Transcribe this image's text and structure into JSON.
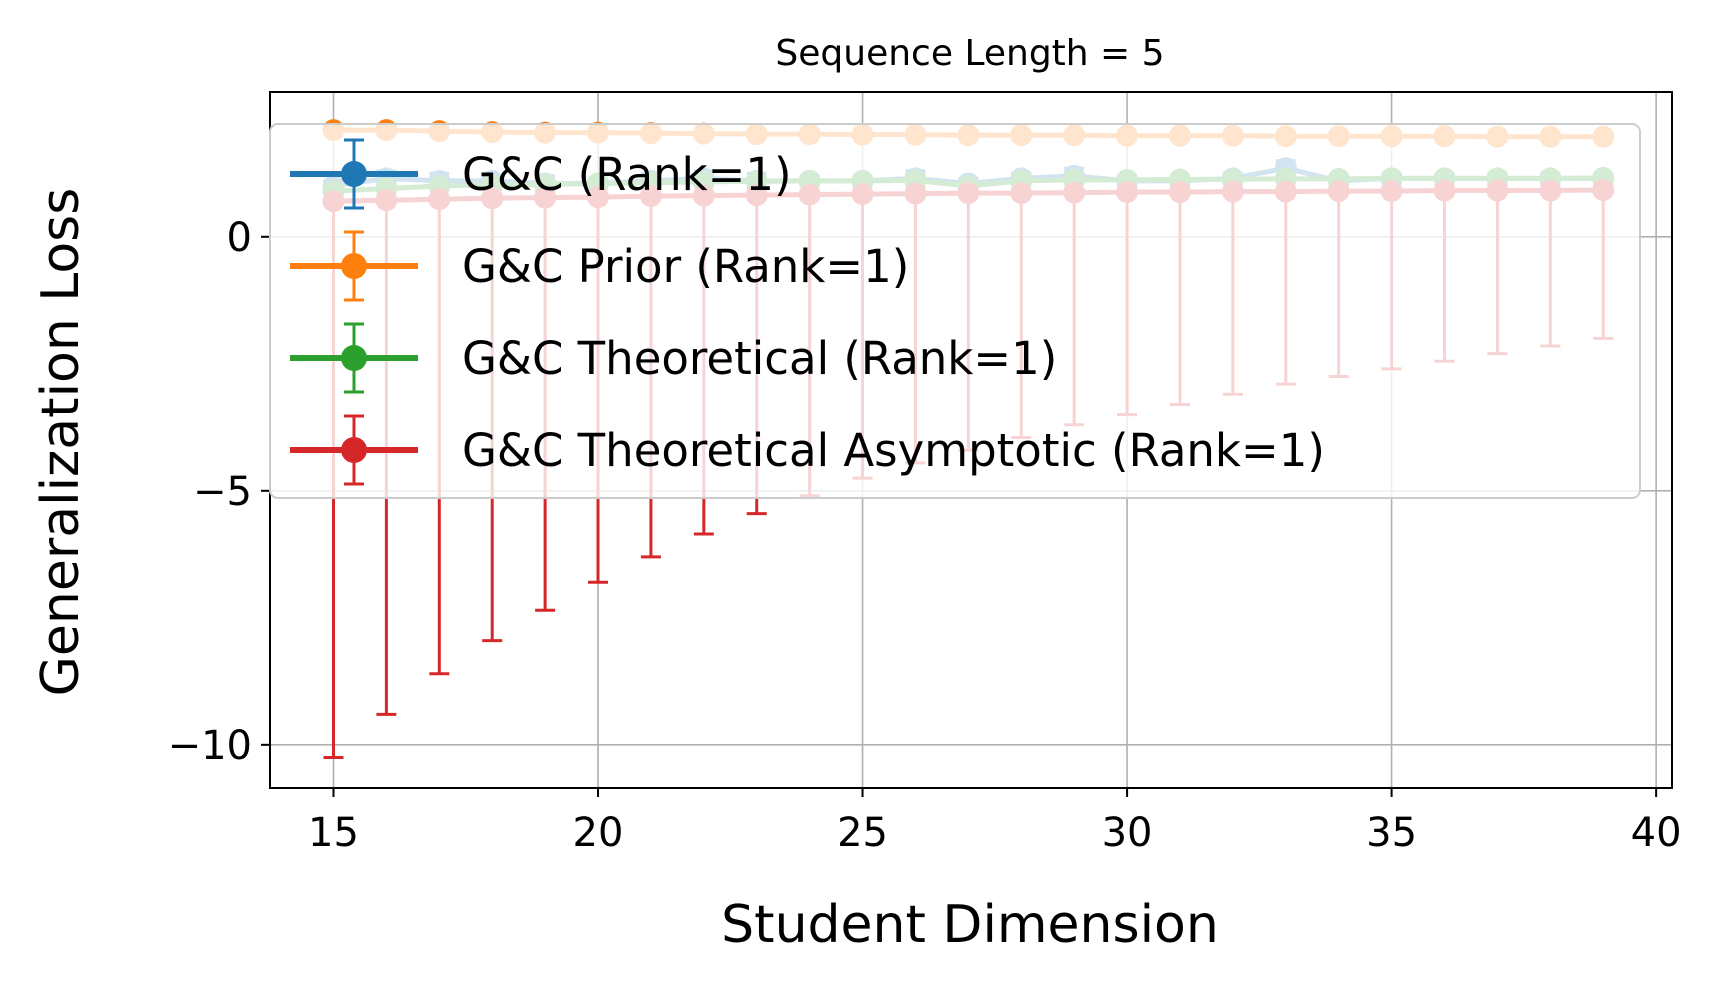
{
  "chart_data": {
    "type": "line",
    "title": "Sequence Length = 5",
    "xlabel": "Student Dimension",
    "ylabel": "Generalization Loss",
    "xlim": [
      13.8,
      40.3
    ],
    "ylim": [
      -10.85,
      2.85
    ],
    "xticks": [
      15,
      20,
      25,
      30,
      35,
      40
    ],
    "xtick_labels": [
      "15",
      "20",
      "25",
      "30",
      "35",
      "40"
    ],
    "yticks": [
      0,
      -5,
      -10
    ],
    "ytick_labels": [
      "0",
      "−5",
      "−10"
    ],
    "grid": true,
    "legend_position": "upper-left",
    "x": [
      15,
      16,
      17,
      18,
      19,
      20,
      21,
      22,
      23,
      24,
      25,
      26,
      27,
      28,
      29,
      30,
      31,
      32,
      33,
      34,
      35,
      36,
      37,
      38,
      39
    ],
    "series": [
      {
        "name": "G&C (Rank=1)",
        "color": "#1f77b4",
        "values": [
          1.0,
          1.15,
          1.1,
          1.1,
          1.05,
          1.05,
          1.1,
          1.15,
          1.1,
          1.1,
          1.1,
          1.15,
          1.05,
          1.15,
          1.2,
          1.1,
          1.1,
          1.15,
          1.35,
          1.1,
          1.15,
          1.15,
          1.15,
          1.15,
          1.15
        ],
        "err": [
          0.1,
          0.15,
          0.15,
          0.1,
          0.15,
          0.1,
          0.15,
          0.15,
          0.15,
          0.1,
          0.1,
          0.15,
          0.1,
          0.1,
          0.15,
          0.1,
          0.1,
          0.1,
          0.15,
          0.1,
          0.1,
          0.1,
          0.1,
          0.1,
          0.1
        ]
      },
      {
        "name": "G&C Prior (Rank=1)",
        "color": "#ff7f0e",
        "values": [
          2.1,
          2.1,
          2.08,
          2.06,
          2.05,
          2.05,
          2.04,
          2.03,
          2.02,
          2.02,
          2.01,
          2.01,
          2.0,
          2.0,
          2.0,
          1.99,
          1.99,
          1.99,
          1.98,
          1.98,
          1.98,
          1.98,
          1.97,
          1.97,
          1.97
        ],
        "err": [
          0.05,
          0.05,
          0.05,
          0.05,
          0.05,
          0.05,
          0.05,
          0.05,
          0.05,
          0.05,
          0.05,
          0.05,
          0.05,
          0.05,
          0.05,
          0.05,
          0.05,
          0.05,
          0.05,
          0.05,
          0.05,
          0.05,
          0.05,
          0.05,
          0.05
        ]
      },
      {
        "name": "G&C Theoretical (Rank=1)",
        "color": "#2ca02c",
        "values": [
          0.9,
          0.95,
          1.0,
          1.02,
          1.03,
          1.05,
          1.06,
          1.08,
          1.09,
          1.1,
          1.1,
          1.11,
          1.0,
          1.1,
          1.12,
          1.12,
          1.13,
          1.13,
          1.14,
          1.14,
          1.15,
          1.15,
          1.15,
          1.15,
          1.16
        ],
        "err": [
          0,
          0,
          0,
          0,
          0,
          0,
          0,
          0,
          0,
          0,
          0,
          0,
          0,
          0,
          0,
          0,
          0,
          0,
          0,
          0,
          0,
          0,
          0,
          0,
          0
        ]
      },
      {
        "name": "G&C Theoretical Asymptotic (Rank=1)",
        "color": "#d62728",
        "values": [
          0.7,
          0.72,
          0.74,
          0.76,
          0.77,
          0.78,
          0.8,
          0.81,
          0.82,
          0.83,
          0.84,
          0.85,
          0.86,
          0.86,
          0.87,
          0.88,
          0.88,
          0.89,
          0.89,
          0.9,
          0.9,
          0.91,
          0.91,
          0.91,
          0.92
        ],
        "lower": [
          -10.25,
          -9.4,
          -8.6,
          -7.95,
          -7.35,
          -6.8,
          -6.3,
          -5.85,
          -5.45,
          -5.1,
          -4.75,
          -4.45,
          -4.2,
          -3.95,
          -3.7,
          -3.5,
          -3.3,
          -3.1,
          -2.9,
          -2.75,
          -2.6,
          -2.45,
          -2.3,
          -2.15,
          -2.0
        ]
      }
    ]
  }
}
